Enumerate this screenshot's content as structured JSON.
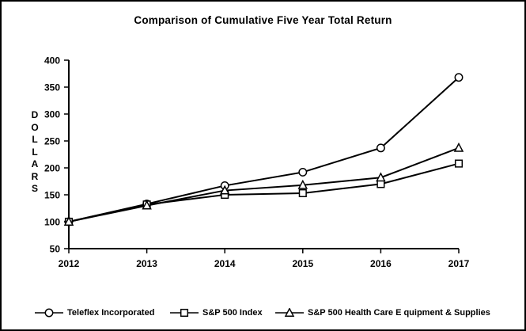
{
  "chart_data": {
    "type": "line",
    "title": "Comparison of Cumulative Five Year Total Return",
    "ylabel": "DOLLARS",
    "xlabel": "",
    "categories": [
      "2012",
      "2013",
      "2014",
      "2015",
      "2016",
      "2017"
    ],
    "y_ticks": [
      400,
      350,
      300,
      250,
      200,
      150,
      100,
      50
    ],
    "ylim": [
      50,
      400
    ],
    "grid": false,
    "legend_position": "bottom",
    "line_color": "#000000",
    "marker_fill": "#ffffff",
    "background_color": "#ffffff",
    "series": [
      {
        "name": "Teleflex Incorporated",
        "marker": "circle",
        "values": [
          100,
          133,
          167,
          192,
          237,
          368
        ]
      },
      {
        "name": "S&P 500 Index",
        "marker": "square",
        "values": [
          100,
          132,
          150,
          153,
          170,
          208
        ]
      },
      {
        "name": "S&P 500 Health Care E quipment & Supplies",
        "marker": "triangle",
        "values": [
          100,
          130,
          158,
          168,
          182,
          237
        ]
      }
    ]
  }
}
